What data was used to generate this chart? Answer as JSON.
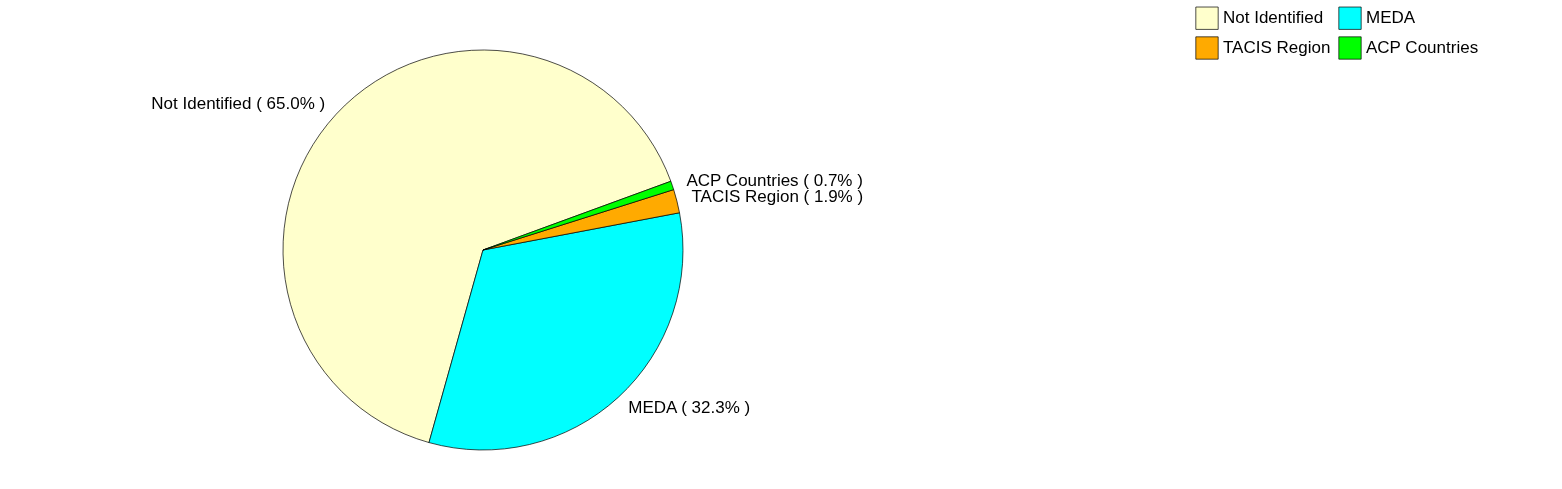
{
  "chart_data": {
    "type": "pie",
    "categories": [
      "Not Identified",
      "MEDA",
      "TACIS Region",
      "ACP Countries"
    ],
    "values": [
      65.0,
      32.3,
      1.9,
      0.7
    ],
    "colors": [
      "#ffffcc",
      "#00ffff",
      "#ffaa00",
      "#00ff00"
    ],
    "value_labels": [
      "Not Identified ( 65.0% )",
      "MEDA ( 32.3% )",
      "TACIS Region ( 1.9% )",
      "ACP Countries ( 0.7% )"
    ],
    "legend": "top right"
  }
}
